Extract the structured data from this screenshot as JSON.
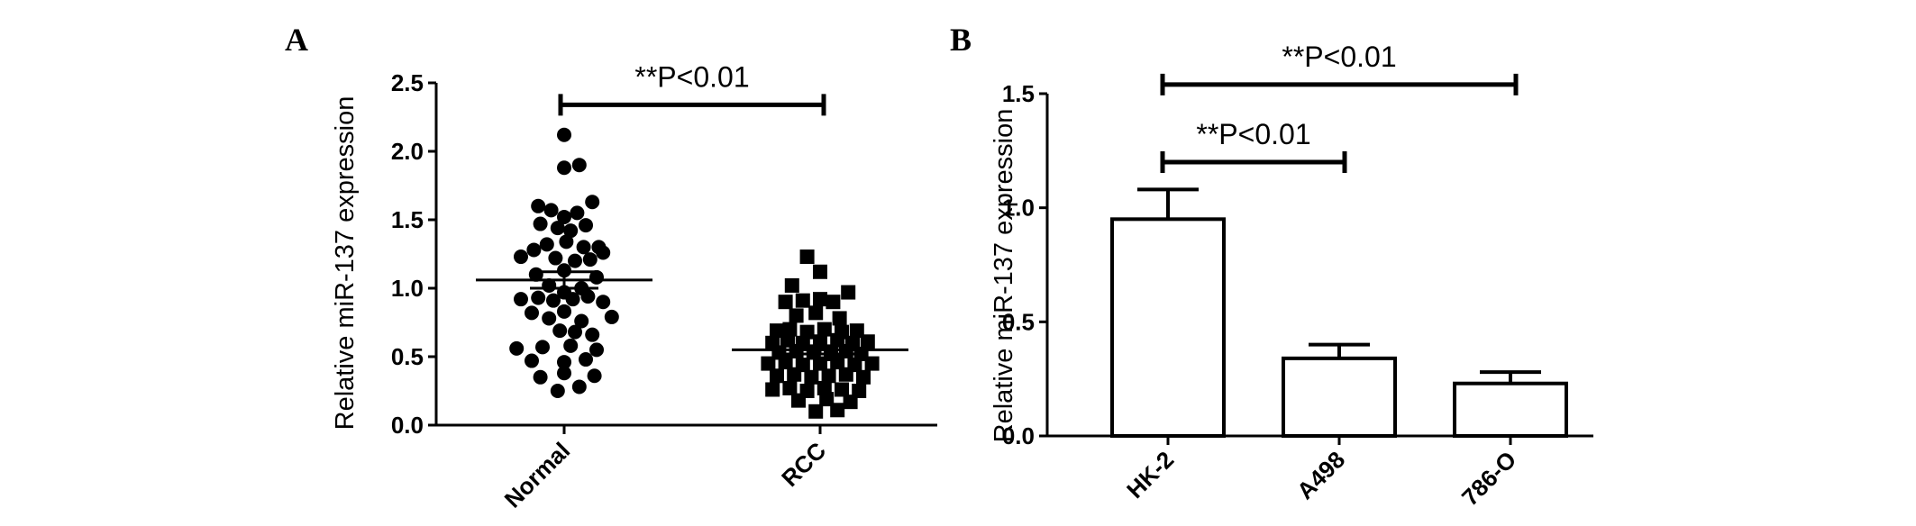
{
  "panels": [
    {
      "letter": "A"
    },
    {
      "letter": "B"
    }
  ],
  "chart_data": [
    {
      "type": "scatter",
      "panel": "A",
      "ylabel": "Relative miR-137 expression",
      "xlabel": "",
      "ylim": [
        0,
        2.5
      ],
      "yticks": [
        "0.0",
        "0.5",
        "1.0",
        "1.5",
        "2.0",
        "2.5"
      ],
      "categories": [
        "Normal",
        "RCC"
      ],
      "series": [
        {
          "category": "Normal",
          "marker": "circle",
          "mean": 1.06,
          "sem": 0.06,
          "points": [
            {
              "dx": 0.0,
              "y": 2.12
            },
            {
              "dx": 0.7,
              "y": 1.9
            },
            {
              "dx": 0.0,
              "y": 1.88
            },
            {
              "dx": 1.3,
              "y": 1.63
            },
            {
              "dx": -1.2,
              "y": 1.6
            },
            {
              "dx": -0.6,
              "y": 1.57
            },
            {
              "dx": 0.6,
              "y": 1.55
            },
            {
              "dx": 0.0,
              "y": 1.52
            },
            {
              "dx": -1.1,
              "y": 1.47
            },
            {
              "dx": 1.0,
              "y": 1.46
            },
            {
              "dx": -0.3,
              "y": 1.44
            },
            {
              "dx": 0.3,
              "y": 1.42
            },
            {
              "dx": 1.6,
              "y": 1.3
            },
            {
              "dx": -0.8,
              "y": 1.32
            },
            {
              "dx": 0.1,
              "y": 1.34
            },
            {
              "dx": 0.9,
              "y": 1.3
            },
            {
              "dx": -1.4,
              "y": 1.28
            },
            {
              "dx": -2.0,
              "y": 1.23
            },
            {
              "dx": 1.8,
              "y": 1.26
            },
            {
              "dx": -0.4,
              "y": 1.22
            },
            {
              "dx": 0.5,
              "y": 1.2
            },
            {
              "dx": 1.2,
              "y": 1.21
            },
            {
              "dx": -1.3,
              "y": 1.1
            },
            {
              "dx": 0.0,
              "y": 1.13
            },
            {
              "dx": 1.5,
              "y": 1.08
            },
            {
              "dx": -0.7,
              "y": 1.02
            },
            {
              "dx": 0.8,
              "y": 1.0
            },
            {
              "dx": 0.0,
              "y": 0.97
            },
            {
              "dx": -2.0,
              "y": 0.92
            },
            {
              "dx": -1.2,
              "y": 0.93
            },
            {
              "dx": -0.5,
              "y": 0.91
            },
            {
              "dx": 0.4,
              "y": 0.92
            },
            {
              "dx": 1.1,
              "y": 0.94
            },
            {
              "dx": 1.8,
              "y": 0.9
            },
            {
              "dx": -1.5,
              "y": 0.82
            },
            {
              "dx": 0.0,
              "y": 0.83
            },
            {
              "dx": 2.2,
              "y": 0.79
            },
            {
              "dx": -0.7,
              "y": 0.78
            },
            {
              "dx": 0.8,
              "y": 0.76
            },
            {
              "dx": -0.2,
              "y": 0.69
            },
            {
              "dx": 0.5,
              "y": 0.68
            },
            {
              "dx": 1.3,
              "y": 0.66
            },
            {
              "dx": -2.2,
              "y": 0.56
            },
            {
              "dx": -1.0,
              "y": 0.57
            },
            {
              "dx": 0.3,
              "y": 0.58
            },
            {
              "dx": 1.5,
              "y": 0.55
            },
            {
              "dx": -1.5,
              "y": 0.47
            },
            {
              "dx": 0.0,
              "y": 0.46
            },
            {
              "dx": 1.0,
              "y": 0.48
            },
            {
              "dx": -1.1,
              "y": 0.35
            },
            {
              "dx": 0.0,
              "y": 0.38
            },
            {
              "dx": 1.4,
              "y": 0.36
            },
            {
              "dx": -0.3,
              "y": 0.25
            },
            {
              "dx": 0.7,
              "y": 0.28
            }
          ]
        },
        {
          "category": "RCC",
          "marker": "square",
          "mean": 0.55,
          "sem": 0.03,
          "points": [
            {
              "dx": -0.6,
              "y": 1.23
            },
            {
              "dx": 0.0,
              "y": 1.12
            },
            {
              "dx": -1.3,
              "y": 1.02
            },
            {
              "dx": 1.3,
              "y": 0.97
            },
            {
              "dx": -1.6,
              "y": 0.9
            },
            {
              "dx": -0.8,
              "y": 0.91
            },
            {
              "dx": 0.0,
              "y": 0.92
            },
            {
              "dx": 0.6,
              "y": 0.9
            },
            {
              "dx": -1.1,
              "y": 0.8
            },
            {
              "dx": -0.2,
              "y": 0.82
            },
            {
              "dx": 0.9,
              "y": 0.78
            },
            {
              "dx": -2.0,
              "y": 0.69
            },
            {
              "dx": -1.4,
              "y": 0.7
            },
            {
              "dx": -0.6,
              "y": 0.68
            },
            {
              "dx": 0.2,
              "y": 0.7
            },
            {
              "dx": 1.0,
              "y": 0.68
            },
            {
              "dx": 1.7,
              "y": 0.69
            },
            {
              "dx": -2.2,
              "y": 0.6
            },
            {
              "dx": -1.5,
              "y": 0.62
            },
            {
              "dx": -0.8,
              "y": 0.6
            },
            {
              "dx": 0.0,
              "y": 0.61
            },
            {
              "dx": 0.8,
              "y": 0.62
            },
            {
              "dx": 1.5,
              "y": 0.6
            },
            {
              "dx": 2.2,
              "y": 0.61
            },
            {
              "dx": -1.9,
              "y": 0.53
            },
            {
              "dx": -1.1,
              "y": 0.54
            },
            {
              "dx": -0.3,
              "y": 0.53
            },
            {
              "dx": 0.5,
              "y": 0.52
            },
            {
              "dx": 1.2,
              "y": 0.54
            },
            {
              "dx": 1.9,
              "y": 0.52
            },
            {
              "dx": -2.4,
              "y": 0.45
            },
            {
              "dx": -1.6,
              "y": 0.46
            },
            {
              "dx": -0.8,
              "y": 0.44
            },
            {
              "dx": 0.0,
              "y": 0.45
            },
            {
              "dx": 0.8,
              "y": 0.46
            },
            {
              "dx": 1.6,
              "y": 0.44
            },
            {
              "dx": 2.4,
              "y": 0.45
            },
            {
              "dx": -2.0,
              "y": 0.36
            },
            {
              "dx": -1.2,
              "y": 0.37
            },
            {
              "dx": -0.4,
              "y": 0.35
            },
            {
              "dx": 0.4,
              "y": 0.36
            },
            {
              "dx": 1.2,
              "y": 0.37
            },
            {
              "dx": 2.0,
              "y": 0.35
            },
            {
              "dx": -2.2,
              "y": 0.26
            },
            {
              "dx": -1.4,
              "y": 0.27
            },
            {
              "dx": -0.6,
              "y": 0.25
            },
            {
              "dx": 0.2,
              "y": 0.27
            },
            {
              "dx": 1.0,
              "y": 0.26
            },
            {
              "dx": 1.8,
              "y": 0.25
            },
            {
              "dx": -1.0,
              "y": 0.18
            },
            {
              "dx": 0.3,
              "y": 0.19
            },
            {
              "dx": 1.4,
              "y": 0.17
            },
            {
              "dx": -0.2,
              "y": 0.1
            },
            {
              "dx": 0.8,
              "y": 0.11
            }
          ]
        }
      ],
      "annotations": [
        {
          "text": "**P<0.01",
          "from": "Normal",
          "to": "RCC",
          "y": 2.34
        }
      ]
    },
    {
      "type": "bar",
      "panel": "B",
      "ylabel": "Relative miR-137 expression",
      "xlabel": "",
      "ylim": [
        0,
        1.5
      ],
      "yticks": [
        "0.0",
        "0.5",
        "1.0",
        "1.5"
      ],
      "categories": [
        "HK-2",
        "A498",
        "786-O"
      ],
      "values": [
        0.95,
        0.34,
        0.23
      ],
      "errors": [
        0.13,
        0.06,
        0.05
      ],
      "annotations": [
        {
          "text": "**P<0.01",
          "from": "HK-2",
          "to": "786-O",
          "y": 1.54
        },
        {
          "text": "**P<0.01",
          "from": "HK-2",
          "to": "A498",
          "y": 1.2
        }
      ]
    }
  ]
}
